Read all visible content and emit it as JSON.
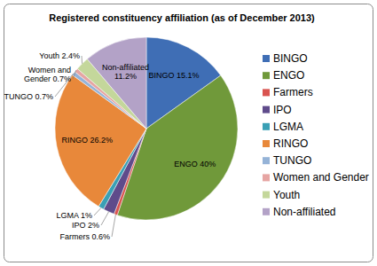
{
  "chart_data": {
    "type": "pie",
    "title": "Registered constituency affiliation (as of December 2013)",
    "categories": [
      "BINGO",
      "ENGO",
      "Farmers",
      "IPO",
      "LGMA",
      "RINGO",
      "TUNGO",
      "Women and Gender",
      "Youth",
      "Non-affiliated"
    ],
    "values": [
      15.1,
      40,
      0.6,
      2,
      1,
      26.2,
      0.7,
      0.7,
      2.4,
      11.2
    ],
    "value_labels": [
      "BINGO 15.1%",
      "ENGO 40%",
      "Farmers 0.6%",
      "IPO 2%",
      "LGMA 1%",
      "RINGO 26.2%",
      "TUNGO 0.7%",
      "Women and Gender 0.7%",
      "Youth 2.4%",
      "Non-affiliated 11.2%"
    ],
    "colors": [
      "#3f6eb5",
      "#70993a",
      "#d9534f",
      "#5f4b8b",
      "#3aa0b5",
      "#e8883a",
      "#95b3d7",
      "#e6a5a3",
      "#c4d79b",
      "#b3a2c7"
    ],
    "data_labels": true,
    "legend": "right"
  }
}
